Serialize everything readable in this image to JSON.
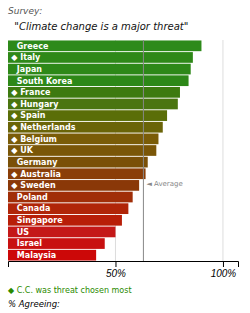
{
  "chart_data": {
    "type": "bar",
    "orientation": "horizontal",
    "title": "Survey:",
    "subtitle": "  \"Climate change is a major threat\"",
    "x_label": "% Agreeing:",
    "categories": [
      "  Greece",
      "◆ Italy",
      "  Japan",
      "  South Korea",
      "◆ France",
      "◆ Hungary",
      "◆ Spain",
      "◆ Netherlands",
      "◆ Belgium",
      "◆ UK",
      "  Germany",
      "◆ Australia",
      "◆ Sweden",
      "  Poland",
      "  Canada",
      "  Singapore",
      "  US",
      "  Israel",
      "  Malaysia"
    ],
    "values": [
      90,
      86,
      85,
      84,
      80,
      79,
      74,
      72,
      70,
      69,
      65,
      64,
      61,
      58,
      56,
      53,
      50,
      45,
      41
    ],
    "colors": [
      "#2d8a1a",
      "#2e8818",
      "#2d8818",
      "#2d8818",
      "#3d7a10",
      "#4a7510",
      "#5a6e08",
      "#6a6408",
      "#7a5c08",
      "#7a5608",
      "#7a5008",
      "#8a3e08",
      "#8a3808",
      "#a02e08",
      "#b02508",
      "#b81e08",
      "#c41818",
      "#c81010",
      "#cc0808"
    ],
    "xlim": [
      0,
      107
    ],
    "xticks": [
      {
        "value": 50,
        "label": "50%"
      },
      {
        "value": 100,
        "label": "100%"
      }
    ],
    "grid": true,
    "reference_line": {
      "value": 63,
      "label": "◄ Average",
      "color": "#888888"
    },
    "note": {
      "text": "◆ C.C. was threat chosen most",
      "color": "#2a8a00"
    }
  }
}
